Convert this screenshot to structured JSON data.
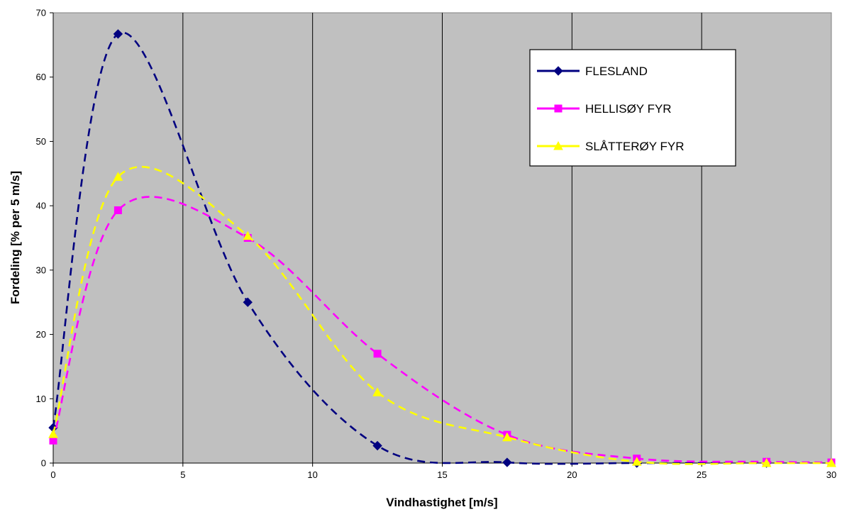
{
  "chart_data": {
    "type": "line",
    "title": "",
    "xlabel": "Vindhastighet [m/s]",
    "ylabel": "Fordeling [% per 5 m/s]",
    "xlim": [
      0,
      30
    ],
    "ylim": [
      0,
      70
    ],
    "x_ticks": [
      "0",
      "5",
      "10",
      "15",
      "20",
      "25",
      "30"
    ],
    "y_ticks": [
      "0",
      "10",
      "20",
      "30",
      "40",
      "50",
      "60",
      "70"
    ],
    "grid": "vertical",
    "plot_background": "#C0C0C0",
    "legend_position": "top-right",
    "series": [
      {
        "name": "FLESLAND",
        "color": "#000080",
        "marker": "diamond",
        "line_style": "dashed-smooth",
        "x": [
          0,
          2.5,
          7.5,
          12.5,
          17.5,
          22.5,
          27.5
        ],
        "values": [
          5.5,
          66.7,
          25.0,
          2.7,
          0.1,
          0.0,
          0.0
        ]
      },
      {
        "name": "HELLISØY FYR",
        "color": "#FF00FF",
        "marker": "square",
        "line_style": "dashed-smooth",
        "x": [
          0,
          2.5,
          7.5,
          12.5,
          17.5,
          22.5,
          27.5,
          30
        ],
        "values": [
          3.5,
          39.3,
          35.0,
          17.0,
          4.4,
          0.7,
          0.2,
          0.1
        ]
      },
      {
        "name": "SLÅTTERØY FYR",
        "color": "#FFFF00",
        "marker": "triangle",
        "line_style": "dashed-smooth",
        "x": [
          0,
          2.5,
          7.5,
          12.5,
          17.5,
          22.5,
          27.5,
          30
        ],
        "values": [
          4.5,
          44.5,
          35.3,
          11.0,
          4.0,
          0.2,
          0.0,
          0.0
        ]
      }
    ]
  }
}
